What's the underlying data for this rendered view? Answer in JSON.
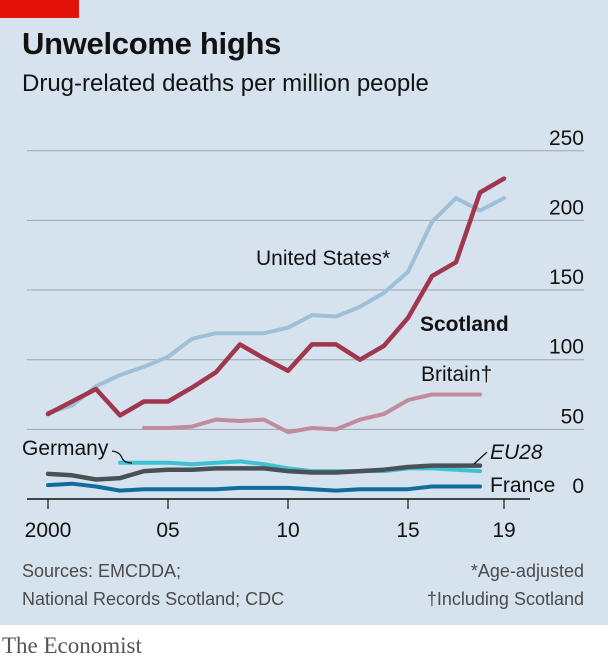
{
  "header": {
    "title": "Unwelcome highs",
    "subtitle": "Drug-related deaths per million people"
  },
  "colors": {
    "scotland": "#a0374e",
    "united_states": "#9dbfd7",
    "britain": "#c08c9c",
    "germany": "#3ec1d3",
    "eu28": "#4a5156",
    "france": "#146c9e",
    "gridline": "#9aa6b0",
    "axis_text": "#121212"
  },
  "chart_data": {
    "type": "line",
    "title": "Unwelcome highs",
    "subtitle": "Drug-related deaths per million people",
    "xlabel": "",
    "ylabel": "",
    "xlim": [
      1999.5,
      2019.5
    ],
    "ylim": [
      0,
      250
    ],
    "y_ticks": [
      "250",
      "200",
      "150",
      "100",
      "50",
      "0"
    ],
    "y_tick_values": [
      250,
      200,
      150,
      100,
      50,
      0
    ],
    "x_ticks": [
      "2000",
      "05",
      "10",
      "15",
      "19"
    ],
    "x_tick_values": [
      2000,
      2005,
      2010,
      2015,
      2019
    ],
    "series": [
      {
        "key": "united_states",
        "name": "United States*",
        "x": [
          2000,
          2001,
          2002,
          2003,
          2004,
          2005,
          2006,
          2007,
          2008,
          2009,
          2010,
          2011,
          2012,
          2013,
          2014,
          2015,
          2016,
          2017,
          2018,
          2019
        ],
        "values": [
          62,
          67,
          81,
          89,
          95,
          102,
          115,
          119,
          119,
          119,
          123,
          132,
          131,
          138,
          148,
          163,
          199,
          216,
          207,
          216
        ]
      },
      {
        "key": "scotland",
        "name": "Scotland",
        "x": [
          2000,
          2001,
          2002,
          2003,
          2004,
          2005,
          2006,
          2007,
          2008,
          2009,
          2010,
          2011,
          2012,
          2013,
          2014,
          2015,
          2016,
          2017,
          2018,
          2019
        ],
        "values": [
          61,
          70,
          79,
          60,
          70,
          70,
          80,
          91,
          111,
          101,
          92,
          111,
          111,
          100,
          110,
          130,
          160,
          170,
          220,
          230
        ]
      },
      {
        "key": "britain",
        "name": "Britain†",
        "x": [
          2004,
          2005,
          2006,
          2007,
          2008,
          2009,
          2010,
          2011,
          2012,
          2013,
          2014,
          2015,
          2016,
          2017,
          2018
        ],
        "values": [
          51,
          51,
          52,
          57,
          56,
          57,
          48,
          51,
          50,
          57,
          61,
          71,
          75,
          75,
          75
        ]
      },
      {
        "key": "germany",
        "name": "Germany",
        "x": [
          2003,
          2004,
          2005,
          2006,
          2007,
          2008,
          2009,
          2010,
          2011,
          2012,
          2013,
          2014,
          2015,
          2016,
          2017,
          2018
        ],
        "values": [
          26,
          26,
          26,
          25,
          26,
          27,
          25,
          22,
          20,
          20,
          20,
          20,
          22,
          22,
          21,
          20
        ]
      },
      {
        "key": "eu28",
        "name": "EU28",
        "x": [
          2000,
          2001,
          2002,
          2003,
          2004,
          2005,
          2006,
          2007,
          2008,
          2009,
          2010,
          2011,
          2012,
          2013,
          2014,
          2015,
          2016,
          2017,
          2018
        ],
        "values": [
          18,
          17,
          14,
          15,
          20,
          21,
          21,
          22,
          22,
          22,
          20,
          19,
          19,
          20,
          21,
          23,
          24,
          24,
          24
        ]
      },
      {
        "key": "france",
        "name": "France",
        "x": [
          2000,
          2001,
          2002,
          2003,
          2004,
          2005,
          2006,
          2007,
          2008,
          2009,
          2010,
          2011,
          2012,
          2013,
          2014,
          2015,
          2016,
          2017,
          2018
        ],
        "values": [
          10,
          11,
          9,
          6,
          7,
          7,
          7,
          7,
          8,
          8,
          8,
          7,
          6,
          7,
          7,
          7,
          9,
          9,
          9
        ]
      }
    ],
    "grid": true,
    "legend": "direct labels next to lines"
  },
  "sources": {
    "left_line1": "Sources: EMCDDA;",
    "left_line2": "National Records Scotland; CDC",
    "right_line1": "*Age-adjusted",
    "right_line2": "†Including Scotland"
  },
  "brand": "The Economist"
}
